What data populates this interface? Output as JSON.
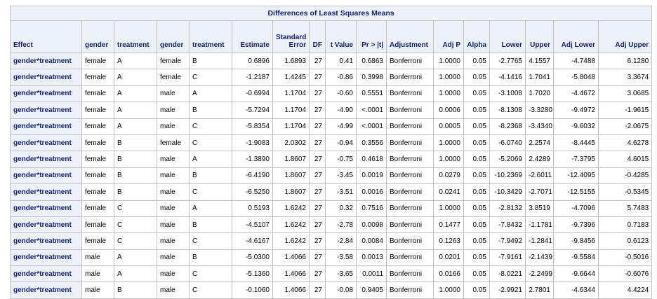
{
  "table": {
    "title": "Differences of Least Squares Means",
    "headers": [
      {
        "label": "Effect",
        "align": "l"
      },
      {
        "label": "gender",
        "align": "l"
      },
      {
        "label": "treatment",
        "align": "l"
      },
      {
        "label": "gender",
        "align": "l"
      },
      {
        "label": "treatment",
        "align": "l"
      },
      {
        "label": "Estimate",
        "align": "r"
      },
      {
        "label": "Standard\nError",
        "align": "r"
      },
      {
        "label": "DF",
        "align": "r"
      },
      {
        "label": "t Value",
        "align": "r"
      },
      {
        "label": "Pr > |t|",
        "align": "r"
      },
      {
        "label": "Adjustment",
        "align": "l"
      },
      {
        "label": "Adj P",
        "align": "r"
      },
      {
        "label": "Alpha",
        "align": "r"
      },
      {
        "label": "Lower",
        "align": "r"
      },
      {
        "label": "Upper",
        "align": "r"
      },
      {
        "label": "Adj Lower",
        "align": "r"
      },
      {
        "label": "Adj Upper",
        "align": "r"
      }
    ],
    "rows": [
      [
        "gender*treatment",
        "female",
        "A",
        "female",
        "B",
        "0.6896",
        "1.6893",
        "27",
        "0.41",
        "0.6863",
        "Bonferroni",
        "1.0000",
        "0.05",
        "-2.7765",
        "4.1557",
        "-4.7488",
        "6.1280"
      ],
      [
        "gender*treatment",
        "female",
        "A",
        "female",
        "C",
        "-1.2187",
        "1.4245",
        "27",
        "-0.86",
        "0.3998",
        "Bonferroni",
        "1.0000",
        "0.05",
        "-4.1416",
        "1.7041",
        "-5.8048",
        "3.3674"
      ],
      [
        "gender*treatment",
        "female",
        "A",
        "male",
        "A",
        "-0.6994",
        "1.1704",
        "27",
        "-0.60",
        "0.5551",
        "Bonferroni",
        "1.0000",
        "0.05",
        "-3.1008",
        "1.7020",
        "-4.4672",
        "3.0685"
      ],
      [
        "gender*treatment",
        "female",
        "A",
        "male",
        "B",
        "-5.7294",
        "1.1704",
        "27",
        "-4.90",
        "<.0001",
        "Bonferroni",
        "0.0006",
        "0.05",
        "-8.1308",
        "-3.3280",
        "-9.4972",
        "-1.9615"
      ],
      [
        "gender*treatment",
        "female",
        "A",
        "male",
        "C",
        "-5.8354",
        "1.1704",
        "27",
        "-4.99",
        "<.0001",
        "Bonferroni",
        "0.0005",
        "0.05",
        "-8.2368",
        "-3.4340",
        "-9.6032",
        "-2.0675"
      ],
      [
        "gender*treatment",
        "female",
        "B",
        "female",
        "C",
        "-1.9083",
        "2.0302",
        "27",
        "-0.94",
        "0.3556",
        "Bonferroni",
        "1.0000",
        "0.05",
        "-6.0740",
        "2.2574",
        "-8.4445",
        "4.6278"
      ],
      [
        "gender*treatment",
        "female",
        "B",
        "male",
        "A",
        "-1.3890",
        "1.8607",
        "27",
        "-0.75",
        "0.4618",
        "Bonferroni",
        "1.0000",
        "0.05",
        "-5.2069",
        "2.4289",
        "-7.3795",
        "4.6015"
      ],
      [
        "gender*treatment",
        "female",
        "B",
        "male",
        "B",
        "-6.4190",
        "1.8607",
        "27",
        "-3.45",
        "0.0019",
        "Bonferroni",
        "0.0279",
        "0.05",
        "-10.2369",
        "-2.6011",
        "-12.4095",
        "-0.4285"
      ],
      [
        "gender*treatment",
        "female",
        "B",
        "male",
        "C",
        "-6.5250",
        "1.8607",
        "27",
        "-3.51",
        "0.0016",
        "Bonferroni",
        "0.0241",
        "0.05",
        "-10.3429",
        "-2.7071",
        "-12.5155",
        "-0.5345"
      ],
      [
        "gender*treatment",
        "female",
        "C",
        "male",
        "A",
        "0.5193",
        "1.6242",
        "27",
        "0.32",
        "0.7516",
        "Bonferroni",
        "1.0000",
        "0.05",
        "-2.8132",
        "3.8519",
        "-4.7096",
        "5.7483"
      ],
      [
        "gender*treatment",
        "female",
        "C",
        "male",
        "B",
        "-4.5107",
        "1.6242",
        "27",
        "-2.78",
        "0.0098",
        "Bonferroni",
        "0.1477",
        "0.05",
        "-7.8432",
        "-1.1781",
        "-9.7396",
        "0.7183"
      ],
      [
        "gender*treatment",
        "female",
        "C",
        "male",
        "C",
        "-4.6167",
        "1.6242",
        "27",
        "-2.84",
        "0.0084",
        "Bonferroni",
        "0.1263",
        "0.05",
        "-7.9492",
        "-1.2841",
        "-9.8456",
        "0.6123"
      ],
      [
        "gender*treatment",
        "male",
        "A",
        "male",
        "B",
        "-5.0300",
        "1.4066",
        "27",
        "-3.58",
        "0.0013",
        "Bonferroni",
        "0.0201",
        "0.05",
        "-7.9161",
        "-2.1439",
        "-9.5584",
        "-0.5016"
      ],
      [
        "gender*treatment",
        "male",
        "A",
        "male",
        "C",
        "-5.1360",
        "1.4066",
        "27",
        "-3.65",
        "0.0011",
        "Bonferroni",
        "0.0166",
        "0.05",
        "-8.0221",
        "-2.2499",
        "-9.6644",
        "-0.6076"
      ],
      [
        "gender*treatment",
        "male",
        "B",
        "male",
        "C",
        "-0.1060",
        "1.4066",
        "27",
        "-0.08",
        "0.9405",
        "Bonferroni",
        "1.0000",
        "0.05",
        "-2.9921",
        "2.7801",
        "-4.6344",
        "4.4224"
      ]
    ],
    "colors": {
      "header_bg": "#edf2f9",
      "header_text": "#112277",
      "border": "#c1c1c1"
    }
  }
}
